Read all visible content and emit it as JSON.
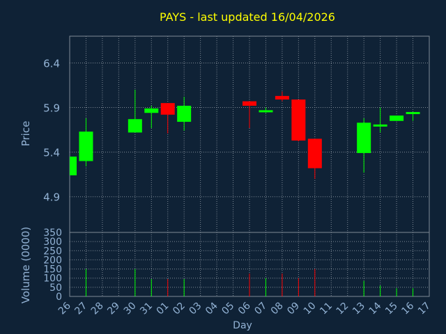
{
  "chart_data": {
    "type": "candlestick",
    "title": "PAYS - last updated 16/04/2026",
    "xlabel": "Day",
    "price_axis": {
      "label": "Price",
      "ticks": [
        "4.9",
        "5.4",
        "5.9",
        "6.4"
      ],
      "ylim": [
        4.5,
        6.7
      ]
    },
    "volume_axis": {
      "label": "Volume (0000)",
      "ticks": [
        "0",
        "50",
        "100",
        "150",
        "200",
        "250",
        "300",
        "350"
      ],
      "ylim": [
        0,
        350
      ]
    },
    "grid": true,
    "categories": [
      "26",
      "27",
      "28",
      "29",
      "30",
      "31",
      "01",
      "02",
      "03",
      "04",
      "05",
      "06",
      "07",
      "08",
      "09",
      "10",
      "11",
      "12",
      "13",
      "14",
      "15",
      "16",
      "17"
    ],
    "candles": [
      {
        "day": "26",
        "open": 5.14,
        "close": 5.35,
        "high": 5.35,
        "low": 5.14,
        "volume": 0
      },
      {
        "day": "27",
        "open": 5.3,
        "close": 5.63,
        "high": 5.78,
        "low": 5.24,
        "volume": 150
      },
      {
        "day": "30",
        "open": 5.62,
        "close": 5.77,
        "high": 6.1,
        "low": 5.62,
        "volume": 150
      },
      {
        "day": "31",
        "open": 5.84,
        "close": 5.89,
        "high": 5.92,
        "low": 5.67,
        "volume": 95
      },
      {
        "day": "01",
        "open": 5.95,
        "close": 5.82,
        "high": 5.95,
        "low": 5.61,
        "volume": 95
      },
      {
        "day": "02",
        "open": 5.74,
        "close": 5.92,
        "high": 6.02,
        "low": 5.64,
        "volume": 95
      },
      {
        "day": "06",
        "open": 5.97,
        "close": 5.92,
        "high": 5.97,
        "low": 5.67,
        "volume": 125
      },
      {
        "day": "07",
        "open": 5.85,
        "close": 5.87,
        "high": 5.9,
        "low": 5.84,
        "volume": 100
      },
      {
        "day": "08",
        "open": 6.03,
        "close": 5.99,
        "high": 6.08,
        "low": 5.97,
        "volume": 125
      },
      {
        "day": "09",
        "open": 5.99,
        "close": 5.53,
        "high": 5.99,
        "low": 5.52,
        "volume": 100
      },
      {
        "day": "10",
        "open": 5.55,
        "close": 5.22,
        "high": 5.55,
        "low": 5.1,
        "volume": 150
      },
      {
        "day": "13",
        "open": 5.39,
        "close": 5.73,
        "high": 5.78,
        "low": 5.17,
        "volume": 85
      },
      {
        "day": "14",
        "open": 5.69,
        "close": 5.71,
        "high": 5.9,
        "low": 5.62,
        "volume": 60
      },
      {
        "day": "15",
        "open": 5.75,
        "close": 5.81,
        "high": 5.81,
        "low": 5.75,
        "volume": 45
      },
      {
        "day": "16",
        "open": 5.83,
        "close": 5.85,
        "high": 5.85,
        "low": 5.75,
        "volume": 45
      }
    ],
    "colors": {
      "background": "#0f2236",
      "grid": "#7f8a96",
      "axis_text": "#93b3d5",
      "title": "#ffff00",
      "up": "#00ff00",
      "down": "#ff0000"
    }
  }
}
